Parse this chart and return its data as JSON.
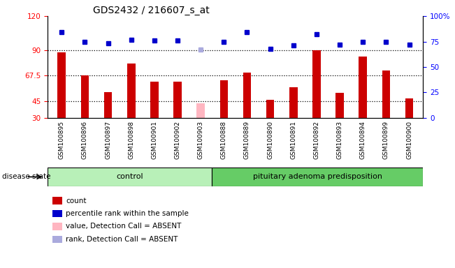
{
  "title": "GDS2432 / 216607_s_at",
  "samples": [
    "GSM100895",
    "GSM100896",
    "GSM100897",
    "GSM100898",
    "GSM100901",
    "GSM100902",
    "GSM100903",
    "GSM100888",
    "GSM100889",
    "GSM100890",
    "GSM100891",
    "GSM100892",
    "GSM100893",
    "GSM100894",
    "GSM100899",
    "GSM100900"
  ],
  "bar_values": [
    88,
    67.5,
    53,
    78,
    62,
    62,
    0,
    63,
    70,
    46,
    57,
    90,
    52,
    84,
    72,
    47
  ],
  "bar_absent": [
    0,
    0,
    0,
    0,
    0,
    0,
    43,
    0,
    0,
    0,
    0,
    0,
    0,
    0,
    0,
    0
  ],
  "dot_values": [
    84,
    75,
    73,
    77,
    76,
    76,
    0,
    75,
    84,
    68,
    71,
    82,
    72,
    75,
    75,
    72
  ],
  "dot_absent": [
    0,
    0,
    0,
    0,
    0,
    0,
    67,
    0,
    0,
    0,
    0,
    0,
    0,
    0,
    0,
    0
  ],
  "bar_color": "#cc0000",
  "bar_absent_color": "#ffb6c1",
  "dot_color": "#0000cc",
  "dot_absent_color": "#aaaadd",
  "ylim_left": [
    30,
    120
  ],
  "ylim_right": [
    0,
    100
  ],
  "yticks_left": [
    30,
    45,
    67.5,
    90,
    120
  ],
  "ytick_labels_left": [
    "30",
    "45",
    "67.5",
    "90",
    "120"
  ],
  "yticks_right": [
    0,
    25,
    50,
    75,
    100
  ],
  "ytick_labels_right": [
    "0",
    "25",
    "50",
    "75",
    "100%"
  ],
  "hlines": [
    45,
    67.5,
    90
  ],
  "group1_label": "control",
  "group2_label": "pituitary adenoma predisposition",
  "group1_count": 7,
  "group2_count": 9,
  "disease_state_label": "disease state",
  "legend_items": [
    {
      "label": "count",
      "color": "#cc0000"
    },
    {
      "label": "percentile rank within the sample",
      "color": "#0000cc"
    },
    {
      "label": "value, Detection Call = ABSENT",
      "color": "#ffb6c1"
    },
    {
      "label": "rank, Detection Call = ABSENT",
      "color": "#aaaadd"
    }
  ],
  "xtick_bg_color": "#c8c8c8",
  "group_bg_color_light": "#b8f0b8",
  "group_bg_color_dark": "#66cc66",
  "plot_bg_color": "#ffffff"
}
